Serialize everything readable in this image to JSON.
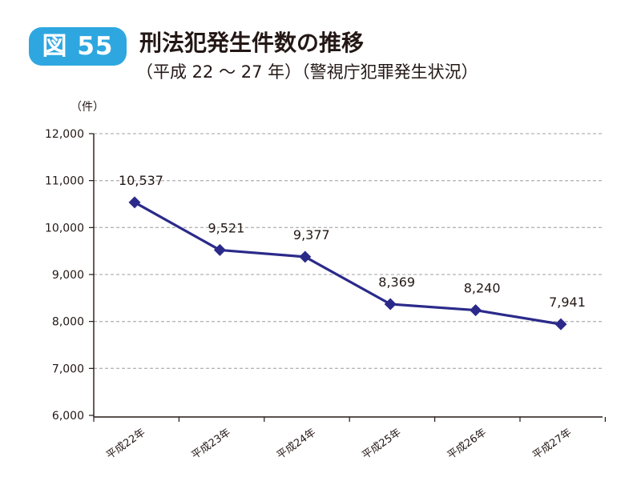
{
  "figure": {
    "badge": "図 55",
    "title": "刑法犯発生件数の推移",
    "subtitle": "（平成 22 ～ 27 年）（警視庁犯罪発生状況）"
  },
  "colors": {
    "badge": "#2ea7e0",
    "series": "#2b2a8a",
    "grid": "#b5b5b5",
    "axis": "#231815"
  },
  "chart_data": {
    "type": "line",
    "title": "刑法犯発生件数の推移",
    "subtitle": "（平成 22 ～ 27 年）（警視庁犯罪発生状況）",
    "yunit": "（件）",
    "categories": [
      "平成22年",
      "平成23年",
      "平成24年",
      "平成25年",
      "平成26年",
      "平成27年"
    ],
    "values": [
      10537,
      9521,
      9377,
      8369,
      8240,
      7941
    ],
    "value_labels": [
      "10,537",
      "9,521",
      "9,377",
      "8,369",
      "8,240",
      "7,941"
    ],
    "ylim": [
      6000,
      12000
    ],
    "yticks": [
      6000,
      7000,
      8000,
      9000,
      10000,
      11000,
      12000
    ],
    "ytick_labels": [
      "6,000",
      "7,000",
      "8,000",
      "9,000",
      "10,000",
      "11,000",
      "12,000"
    ],
    "grid": true,
    "marker": "diamond",
    "legend": "none"
  }
}
